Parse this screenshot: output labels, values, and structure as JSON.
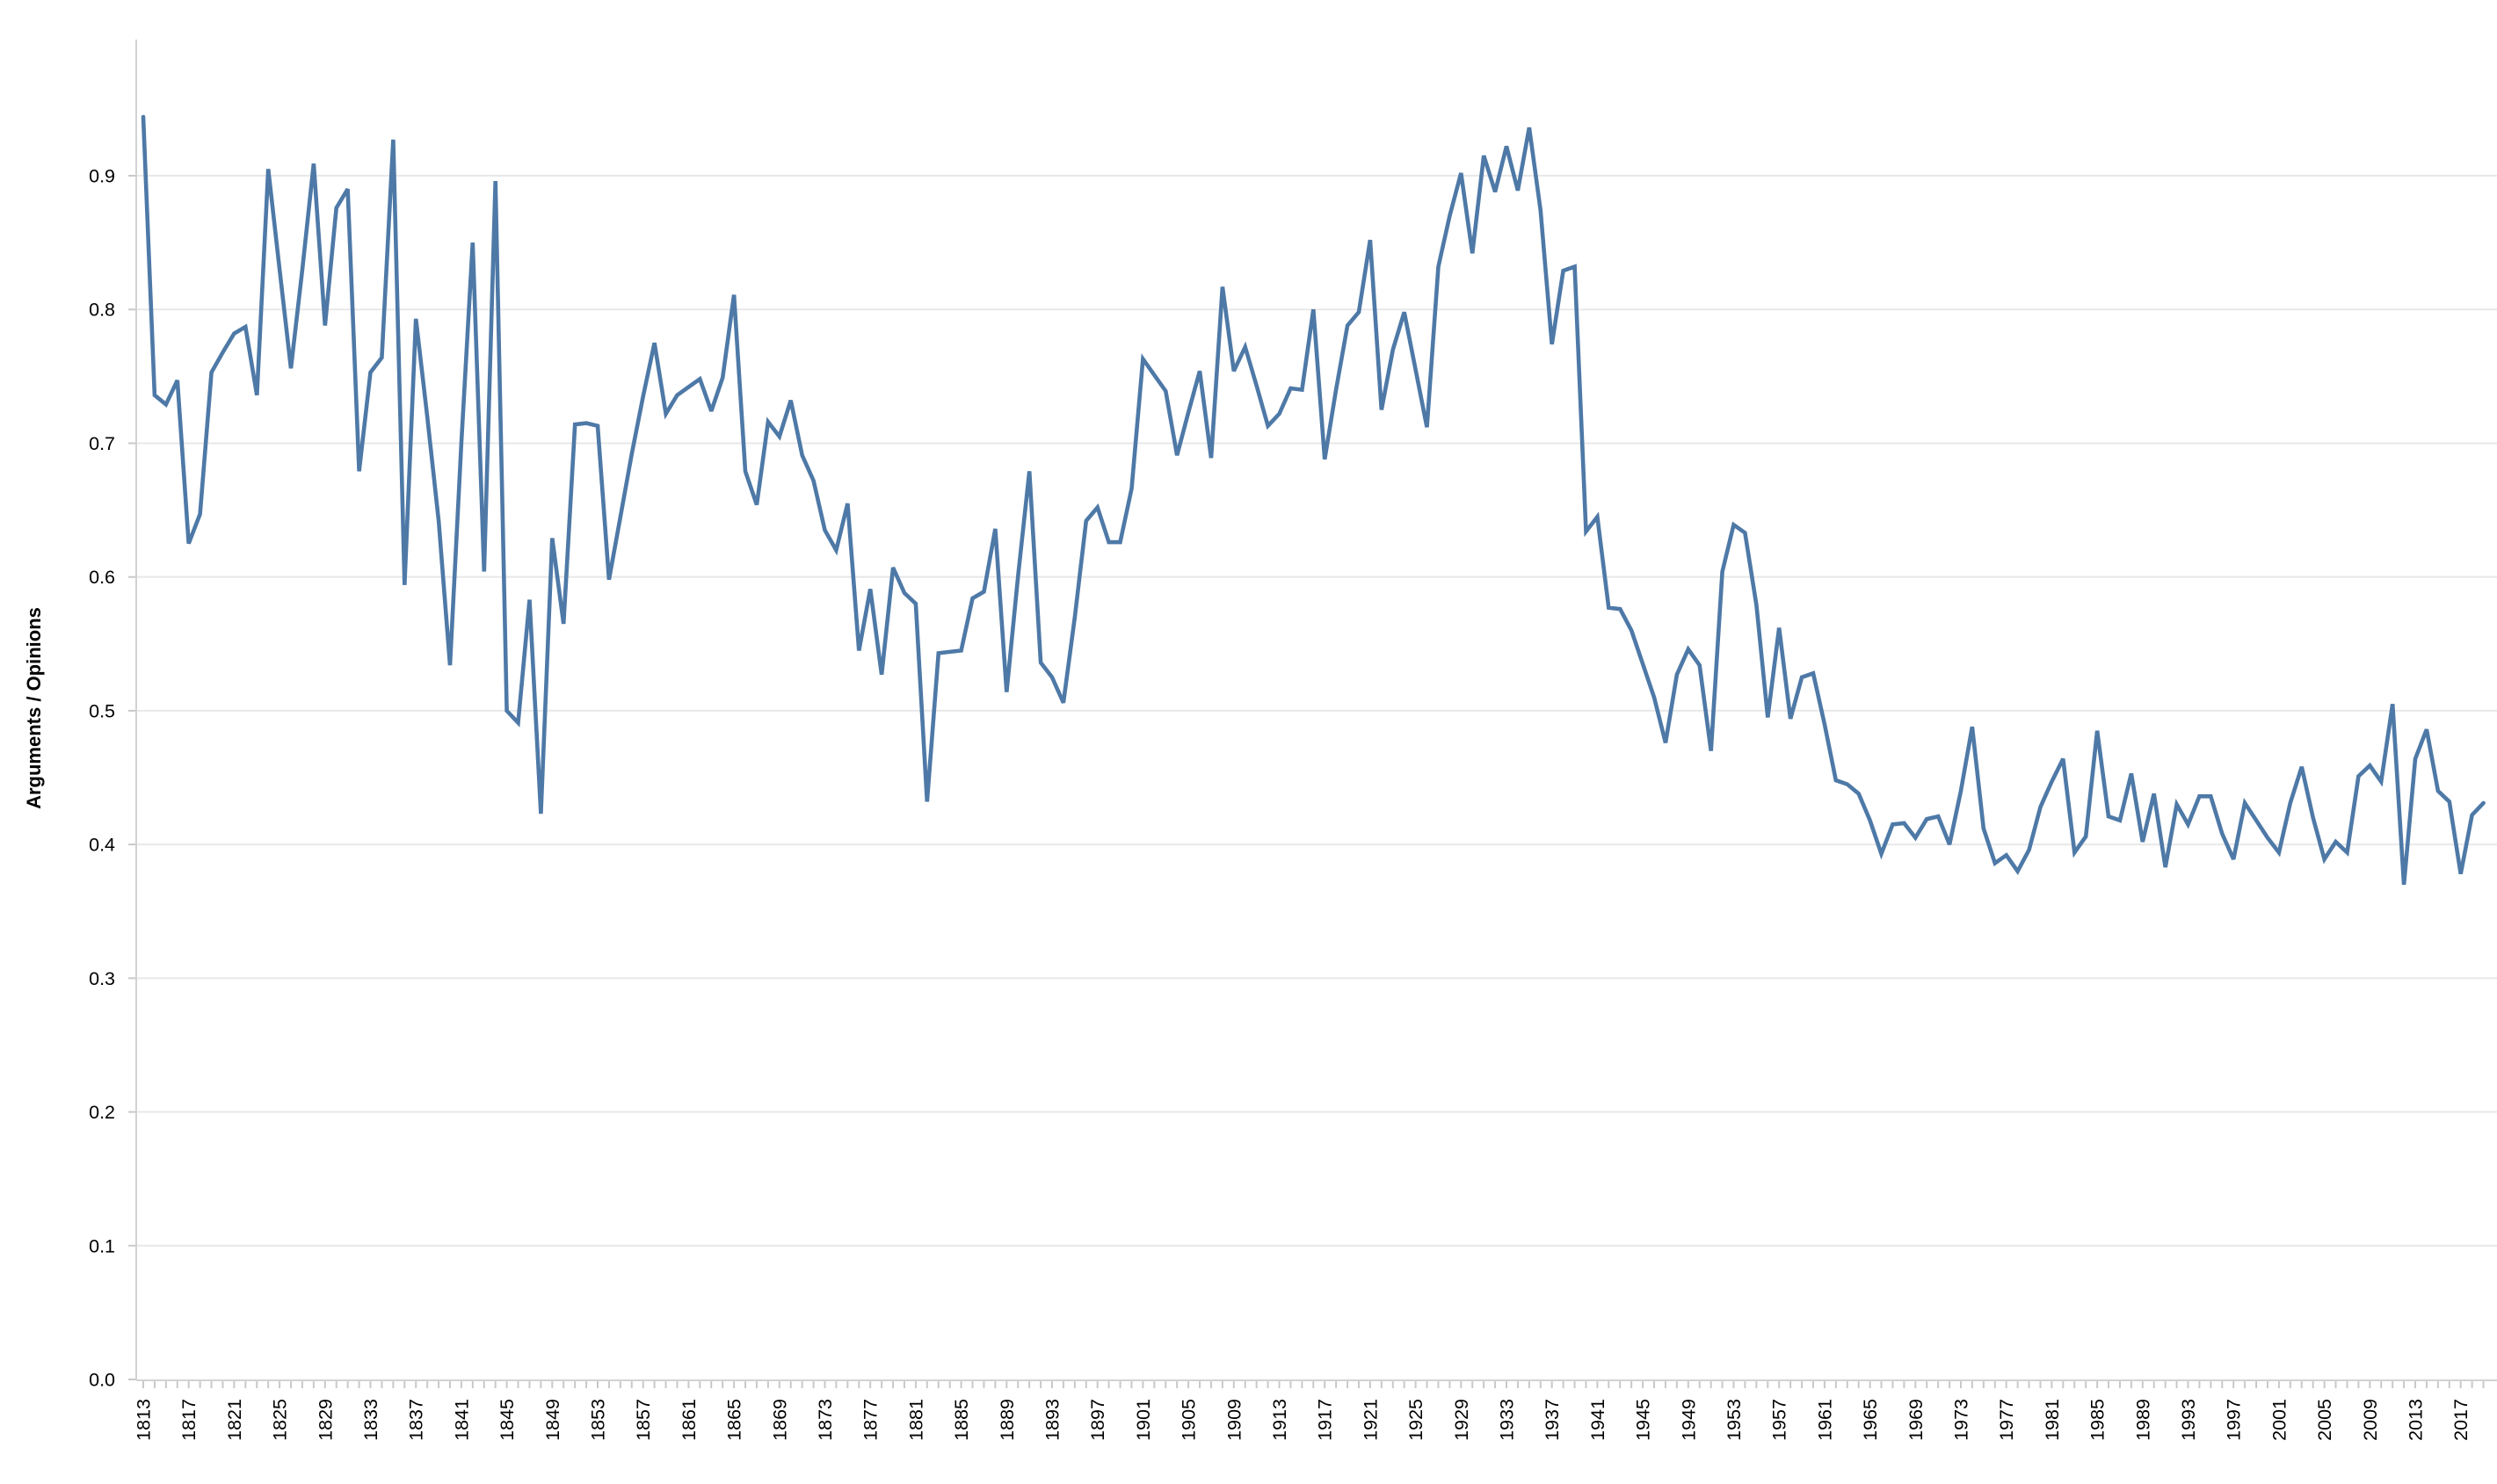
{
  "chart_data": {
    "type": "line",
    "title": "",
    "xlabel": "",
    "ylabel": "Arguments / Opinions",
    "legend": "none",
    "grid": "horizontal-only",
    "ylim": [
      0.0,
      0.975
    ],
    "yticks": [
      0.0,
      0.1,
      0.2,
      0.3,
      0.4,
      0.5,
      0.6,
      0.7,
      0.8,
      0.9
    ],
    "ytick_labels": [
      "0.0",
      "0.1",
      "0.2",
      "0.3",
      "0.4",
      "0.5",
      "0.6",
      "0.7",
      "0.8",
      "0.9"
    ],
    "x_start_year": 1813,
    "x_end_year": 2019,
    "xtick_minor_every": 1,
    "xtick_label_years": [
      1813,
      1817,
      1821,
      1825,
      1829,
      1833,
      1837,
      1841,
      1845,
      1849,
      1853,
      1857,
      1861,
      1865,
      1869,
      1873,
      1877,
      1881,
      1885,
      1889,
      1893,
      1897,
      1901,
      1905,
      1909,
      1913,
      1917,
      1921,
      1925,
      1929,
      1933,
      1937,
      1941,
      1945,
      1949,
      1953,
      1957,
      1961,
      1965,
      1969,
      1973,
      1977,
      1981,
      1985,
      1989,
      1993,
      1997,
      2001,
      2005,
      2009,
      2013,
      2017
    ],
    "series": [
      {
        "name": "Arguments / Opinions ratio",
        "color": "#4e79a7",
        "values": [
          0.944,
          0.736,
          0.729,
          0.747,
          0.625,
          0.647,
          0.753,
          0.768,
          0.782,
          0.787,
          0.736,
          0.905,
          0.83,
          0.756,
          0.83,
          0.909,
          0.788,
          0.876,
          0.89,
          0.679,
          0.753,
          0.764,
          0.927,
          0.594,
          0.793,
          0.72,
          0.642,
          0.534,
          0.7,
          0.85,
          0.604,
          0.896,
          0.5,
          0.491,
          0.583,
          0.423,
          0.629,
          0.565,
          0.714,
          0.715,
          0.713,
          0.598,
          0.645,
          0.692,
          0.735,
          0.775,
          0.722,
          0.736,
          0.742,
          0.748,
          0.724,
          0.749,
          0.811,
          0.679,
          0.654,
          0.716,
          0.705,
          0.732,
          0.691,
          0.672,
          0.635,
          0.62,
          0.655,
          0.545,
          0.591,
          0.527,
          0.607,
          0.588,
          0.58,
          0.432,
          0.543,
          0.544,
          0.545,
          0.584,
          0.589,
          0.636,
          0.514,
          0.6,
          0.679,
          0.536,
          0.525,
          0.506,
          0.57,
          0.642,
          0.652,
          0.626,
          0.626,
          0.666,
          0.763,
          0.751,
          0.739,
          0.691,
          0.723,
          0.754,
          0.689,
          0.817,
          0.754,
          0.772,
          0.743,
          0.713,
          0.722,
          0.741,
          0.74,
          0.8,
          0.688,
          0.74,
          0.788,
          0.798,
          0.852,
          0.725,
          0.77,
          0.798,
          0.755,
          0.712,
          0.832,
          0.87,
          0.902,
          0.842,
          0.915,
          0.888,
          0.922,
          0.889,
          0.936,
          0.874,
          0.774,
          0.829,
          0.832,
          0.634,
          0.645,
          0.577,
          0.576,
          0.56,
          0.535,
          0.51,
          0.476,
          0.527,
          0.546,
          0.534,
          0.47,
          0.604,
          0.639,
          0.633,
          0.579,
          0.495,
          0.562,
          0.494,
          0.525,
          0.528,
          0.49,
          0.448,
          0.445,
          0.438,
          0.418,
          0.393,
          0.415,
          0.416,
          0.405,
          0.419,
          0.421,
          0.4,
          0.44,
          0.488,
          0.412,
          0.386,
          0.392,
          0.38,
          0.396,
          0.428,
          0.447,
          0.464,
          0.394,
          0.406,
          0.485,
          0.421,
          0.418,
          0.453,
          0.402,
          0.438,
          0.383,
          0.43,
          0.415,
          0.436,
          0.436,
          0.408,
          0.389,
          0.431,
          0.418,
          0.405,
          0.394,
          0.431,
          0.458,
          0.42,
          0.389,
          0.402,
          0.394,
          0.451,
          0.459,
          0.447,
          0.505,
          0.37,
          0.464,
          0.486,
          0.44,
          0.432,
          0.378,
          0.422,
          0.431
        ]
      }
    ]
  },
  "colors": {
    "line": "#4e79a7",
    "gridline": "#e8e8e8",
    "axis": "#d2d2d2",
    "tick": "#c9c9c9",
    "text": "#000000",
    "background": "#ffffff"
  },
  "layout_values": {
    "note_visible_pixels_only": true
  }
}
